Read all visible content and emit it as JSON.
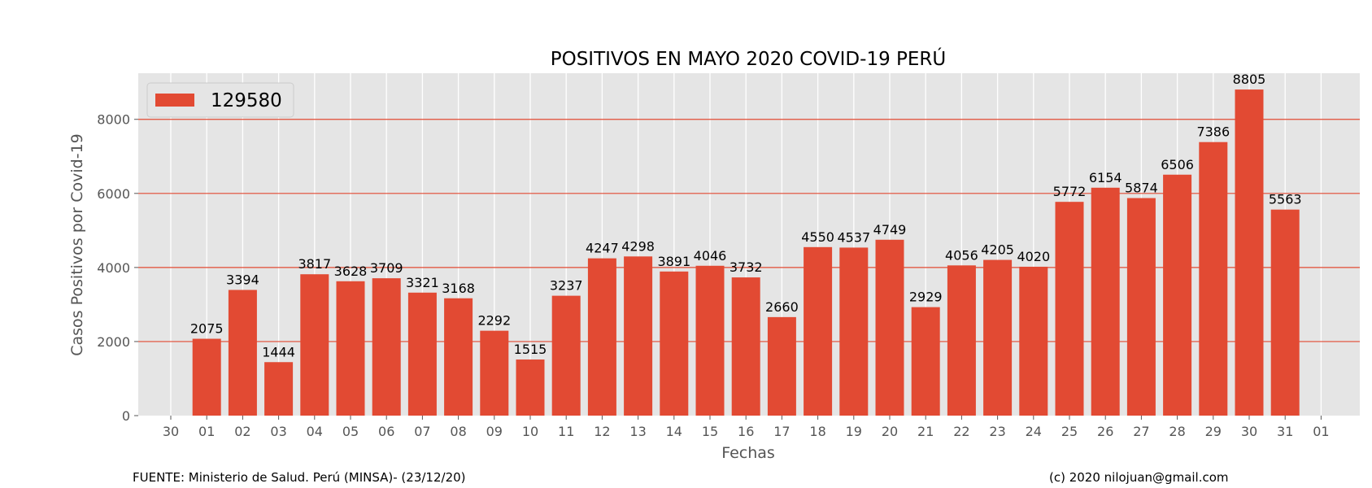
{
  "chart_data": {
    "type": "bar",
    "title": "POSITIVOS EN MAYO 2020 COVID-19 PERÚ",
    "xlabel": "Fechas",
    "ylabel": "Casos Positivos por Covid-19",
    "x_tick_labels": [
      "30",
      "01",
      "02",
      "03",
      "04",
      "05",
      "06",
      "07",
      "08",
      "09",
      "10",
      "11",
      "12",
      "13",
      "14",
      "15",
      "16",
      "17",
      "18",
      "19",
      "20",
      "21",
      "22",
      "23",
      "24",
      "25",
      "26",
      "27",
      "28",
      "29",
      "30",
      "31",
      "01"
    ],
    "categories": [
      "01",
      "02",
      "03",
      "04",
      "05",
      "06",
      "07",
      "08",
      "09",
      "10",
      "11",
      "12",
      "13",
      "14",
      "15",
      "16",
      "17",
      "18",
      "19",
      "20",
      "21",
      "22",
      "23",
      "24",
      "25",
      "26",
      "27",
      "28",
      "29",
      "30",
      "31"
    ],
    "values": [
      2075,
      3394,
      1444,
      3817,
      3628,
      3709,
      3321,
      3168,
      2292,
      1515,
      3237,
      4247,
      4298,
      3891,
      4046,
      3732,
      2660,
      4550,
      4537,
      4749,
      2929,
      4056,
      4205,
      4020,
      5772,
      6154,
      5874,
      6506,
      7386,
      8805,
      5563
    ],
    "legend": [
      "129580"
    ],
    "legend_position": "upper-left",
    "y_ticks": [
      0,
      2000,
      4000,
      6000,
      8000
    ],
    "ylim": [
      0,
      9246
    ],
    "grid": true,
    "colors": {
      "bar": "#E24A33",
      "background": "#E5E5E5",
      "grid": "#FFFFFF",
      "hline": "#E24A33"
    }
  },
  "footer": {
    "source": "FUENTE: Ministerio de Salud. Perú (MINSA)- (23/12/20)",
    "credit": "(c) 2020 nilojuan@gmail.com"
  }
}
